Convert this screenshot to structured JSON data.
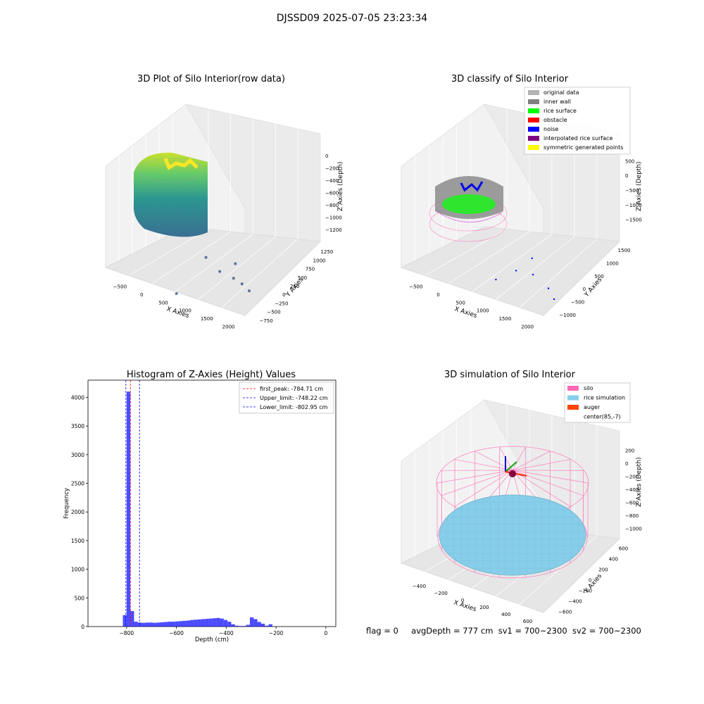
{
  "figure": {
    "suptitle": "DJSSD09 2025-07-05 23:23:34",
    "status": {
      "flag": "flag = 0",
      "avg_depth": "avgDepth = 777 cm",
      "sv1": "sv1 = 700~2300",
      "sv2": "sv2 = 700~2300"
    }
  },
  "chart_data": [
    {
      "id": "raw",
      "type": "scatter3d",
      "title": "3D Plot of Silo Interior(row data)",
      "xlabel": "X Axies",
      "ylabel": "Y Axies",
      "zlabel": "Z Axies (Depth)",
      "x_ticks": [
        "−500",
        "0",
        "500",
        "1000",
        "1500",
        "2000"
      ],
      "y_ticks": [
        "−750",
        "−500",
        "−250",
        "0",
        "250",
        "500",
        "750",
        "1000",
        "1250"
      ],
      "z_ticks": [
        "−1200",
        "−1000",
        "−800",
        "−600",
        "−400",
        "−200",
        "0"
      ],
      "xlim": [
        -650,
        2250
      ],
      "ylim": [
        -800,
        1350
      ],
      "zlim": [
        -1300,
        50
      ],
      "colormap": [
        "#440154",
        "#31688e",
        "#35b779",
        "#fde725"
      ],
      "annular_silo": {
        "center": [
          85,
          -7
        ],
        "radius": 690,
        "z_bottom": -1000,
        "z_top": -200
      },
      "outlier_points": [
        {
          "x": 800,
          "y": 50,
          "z": -900
        },
        {
          "x": 1200,
          "y": -100,
          "z": -950
        },
        {
          "x": 1600,
          "y": -250,
          "z": -900
        },
        {
          "x": 2000,
          "y": -350,
          "z": -950
        },
        {
          "x": 1300,
          "y": 200,
          "z": -950
        },
        {
          "x": 600,
          "y": -500,
          "z": -1200
        },
        {
          "x": 1700,
          "y": -150,
          "z": -1000
        }
      ]
    },
    {
      "id": "classify",
      "type": "scatter3d",
      "title": "3D classify of Silo Interior",
      "xlabel": "X Axies",
      "ylabel": "Y Axies",
      "zlabel": "Z Axies (Depth)",
      "x_ticks": [
        "−500",
        "0",
        "500",
        "1000",
        "1500",
        "2000"
      ],
      "y_ticks": [
        "−1000",
        "−500",
        "0",
        "500",
        "1000",
        "1500"
      ],
      "z_ticks": [
        "−1500",
        "−1000",
        "−500",
        "0",
        "500"
      ],
      "xlim": [
        -650,
        2250
      ],
      "ylim": [
        -1150,
        1650
      ],
      "zlim": [
        -1700,
        600
      ],
      "legend": [
        {
          "label": "original data",
          "color": "#b3b3b3"
        },
        {
          "label": "inner wall",
          "color": "#808080"
        },
        {
          "label": "rice surface",
          "color": "#00ff00"
        },
        {
          "label": "obstacle",
          "color": "#ff0000"
        },
        {
          "label": "noise",
          "color": "#0000ff"
        },
        {
          "label": "interpolated rice surface",
          "color": "#800080"
        },
        {
          "label": "symmetric generated points",
          "color": "#ffff00"
        }
      ],
      "legend_loc": "upper right",
      "noise_points": [
        {
          "x": 1100,
          "y": -100,
          "z": -1100
        },
        {
          "x": 1500,
          "y": -200,
          "z": -1000
        },
        {
          "x": 1900,
          "y": -350,
          "z": -1100
        },
        {
          "x": 2100,
          "y": -500,
          "z": -1200
        },
        {
          "x": 800,
          "y": -300,
          "z": -1300
        },
        {
          "x": 1200,
          "y": 300,
          "z": -1000
        }
      ]
    },
    {
      "id": "hist",
      "type": "bar",
      "title": "Histogram of Z-Axies (Height) Values",
      "xlabel": "Depth (cm)",
      "ylabel": "Frequency",
      "xlim": [
        -955,
        40
      ],
      "ylim": [
        0,
        4300
      ],
      "x_ticks": [
        -800,
        -600,
        -400,
        -200,
        0
      ],
      "y_ticks": [
        0,
        500,
        1000,
        1500,
        2000,
        2500,
        3000,
        3500,
        4000
      ],
      "bar_color": "#0000ff",
      "bar_alpha": 0.7,
      "bin_start": -815,
      "bin_width": 15,
      "values": [
        200,
        4100,
        270,
        85,
        70,
        65,
        70,
        70,
        65,
        70,
        75,
        80,
        85,
        85,
        90,
        95,
        100,
        105,
        115,
        120,
        125,
        130,
        135,
        140,
        145,
        150,
        140,
        115,
        85,
        40,
        15,
        10,
        10,
        30,
        160,
        130,
        80,
        50,
        15,
        40
      ],
      "vlines": [
        {
          "label": "first_peak: -784.71 cm",
          "x": -784.71,
          "color": "#ff0000"
        },
        {
          "label": "Upper_limit: -748.22 cm",
          "x": -748.22,
          "color": "#0000ff"
        },
        {
          "label": "Lower_limit: -802.95 cm",
          "x": -802.95,
          "color": "#0000ff"
        }
      ],
      "legend_loc": "upper right"
    },
    {
      "id": "sim",
      "type": "surface3d",
      "title": "3D simulation of Silo Interior",
      "xlabel": "X Axies",
      "ylabel": "Y Axies",
      "zlabel": "Z Axies (Depth)",
      "x_ticks": [
        "−400",
        "−200",
        "0",
        "200",
        "400",
        "600"
      ],
      "y_ticks": [
        "−600",
        "−400",
        "−200",
        "0",
        "200",
        "400",
        "600"
      ],
      "z_ticks": [
        "−1000",
        "−800",
        "−600",
        "−400",
        "−200",
        "0",
        "200"
      ],
      "legend": [
        {
          "label": "silo",
          "color": "#ff69b4"
        },
        {
          "label": "rice simulation",
          "color": "#87ceeb"
        },
        {
          "label": "auger",
          "color": "#ff4500"
        },
        {
          "label": "center(85,-7)",
          "color": "#ffffff"
        }
      ],
      "legend_loc": "upper right",
      "silo": {
        "center": [
          85,
          -7
        ],
        "radius": 690,
        "z_bottom": -1000,
        "z_top": 0
      },
      "rice_level": -777
    }
  ]
}
